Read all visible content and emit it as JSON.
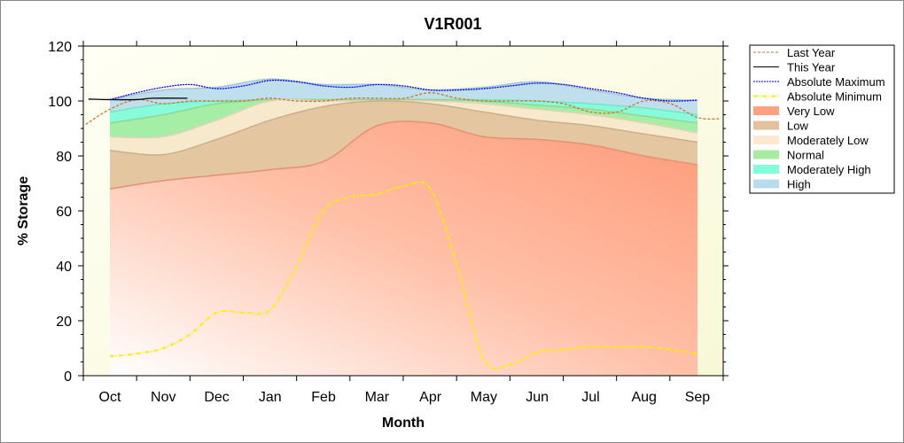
{
  "chart_data": {
    "type": "area",
    "title": "V1R001",
    "xlabel": "Month",
    "ylabel": "% Storage",
    "ylim": [
      0,
      120
    ],
    "yticks": [
      0,
      20,
      40,
      60,
      80,
      100,
      120
    ],
    "categories": [
      "Oct",
      "Nov",
      "Dec",
      "Jan",
      "Feb",
      "Mar",
      "Apr",
      "May",
      "Jun",
      "Jul",
      "Aug",
      "Sep"
    ],
    "grid": false,
    "legend_position": "right",
    "bands": [
      {
        "name": "High",
        "color": "#b8dcec",
        "values": [
          100.5,
          104,
          105,
          108,
          106,
          106,
          104,
          105,
          107,
          104,
          101,
          100.3
        ]
      },
      {
        "name": "Moderately High",
        "color": "#80ffd8",
        "values": [
          96,
          99,
          100,
          100.5,
          100.5,
          100.5,
          100.5,
          100.5,
          100,
          99,
          97.5,
          95
        ]
      },
      {
        "name": "Normal",
        "color": "#a8eca0",
        "values": [
          92,
          95,
          99,
          100.5,
          100.5,
          100.5,
          100.5,
          100,
          98.5,
          97,
          94.5,
          92
        ]
      },
      {
        "name": "Moderately Low",
        "color": "#ffe8d0",
        "values": [
          87,
          87,
          93,
          100,
          100,
          100,
          100,
          99,
          97,
          95,
          92,
          88.4
        ]
      },
      {
        "name": "Low",
        "color": "#e2c29c",
        "values": [
          82,
          80.5,
          86,
          93,
          98,
          100,
          99,
          96,
          93,
          91,
          88,
          85
        ]
      },
      {
        "name": "Very Low",
        "color": "#ffa080",
        "values": [
          68,
          71,
          73,
          75,
          78,
          91,
          92,
          87,
          86,
          84,
          80,
          76.8
        ]
      }
    ],
    "lines": [
      {
        "name": "Last Year",
        "color": "#d07020",
        "style": "dashed",
        "x": [
          -0.45,
          0,
          0.5,
          1,
          1.5,
          2,
          2.5,
          3,
          3.5,
          4,
          4.5,
          5,
          5.5,
          6,
          6.5,
          7,
          7.5,
          8,
          8.5,
          9,
          9.5,
          10,
          10.5,
          11,
          11.4
        ],
        "values": [
          91.5,
          97,
          100.5,
          99,
          100,
          100,
          100,
          101,
          100,
          100,
          101,
          101,
          101,
          103,
          101,
          100,
          100,
          100,
          99,
          96,
          96,
          100,
          99,
          94,
          93.5
        ]
      },
      {
        "name": "This Year",
        "color": "#000000",
        "style": "solid",
        "x": [
          -0.4,
          0,
          0.5,
          0.8,
          1.45
        ],
        "values": [
          100.7,
          100.5,
          100.5,
          101,
          101
        ]
      },
      {
        "name": "Absolute Maximum",
        "color": "#0000ff",
        "style": "dotted",
        "x": [
          0,
          0.5,
          1,
          1.5,
          2,
          2.5,
          3,
          3.5,
          4,
          4.5,
          5,
          5.5,
          6,
          6.5,
          7,
          7.5,
          8,
          8.5,
          9,
          9.5,
          10,
          10.5,
          11
        ],
        "values": [
          100.5,
          103,
          105,
          106,
          104.5,
          105.5,
          107.5,
          107,
          105.5,
          105,
          106,
          105.5,
          104,
          104,
          104.5,
          105.5,
          106.5,
          106,
          104.5,
          103,
          101,
          100,
          100.3
        ]
      },
      {
        "name": "Absolute Minimum",
        "color": "#ffee00",
        "style": "dashdot",
        "x": [
          0,
          0.5,
          1,
          1.5,
          2,
          2.5,
          3,
          3.5,
          4,
          4.5,
          5,
          5.5,
          6,
          6.5,
          7,
          7.5,
          8,
          8.5,
          9,
          9.5,
          10,
          10.5,
          11
        ],
        "values": [
          7,
          8,
          10,
          15,
          23,
          23,
          24,
          40,
          60,
          65,
          66,
          69,
          68,
          40,
          6,
          4,
          8.5,
          9.5,
          10.5,
          10.5,
          10.5,
          9.5,
          8
        ]
      }
    ],
    "legend": [
      "Last Year",
      "This Year",
      "Absolute Maximum",
      "Absolute Minimum",
      "Very Low",
      "Low",
      "Moderately Low",
      "Normal",
      "Moderately High",
      "High"
    ]
  }
}
